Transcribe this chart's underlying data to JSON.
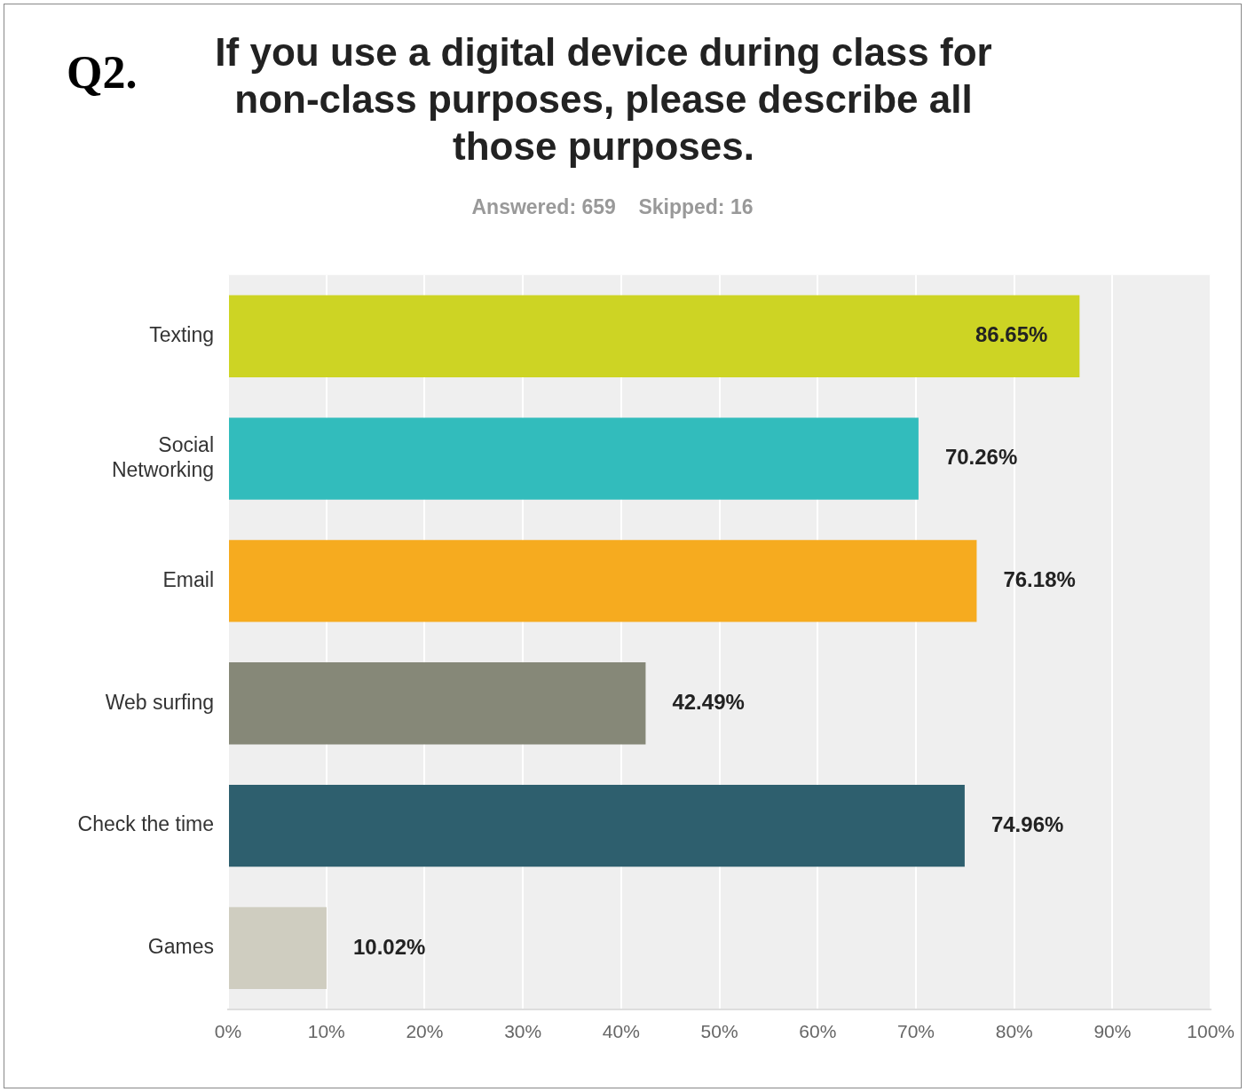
{
  "chart_data": {
    "type": "bar",
    "orientation": "horizontal",
    "title": "If you use a digital device during class for non-class purposes, please describe all those purposes.",
    "subtitle": "Answered: 659    Skipped: 16",
    "annotations": [
      "Q2."
    ],
    "categories": [
      "Texting",
      "Social Networking",
      "Email",
      "Web surfing",
      "Check the time",
      "Games"
    ],
    "values": [
      86.65,
      70.26,
      76.18,
      42.49,
      74.96,
      10.02
    ],
    "colors": [
      "#cdd424",
      "#32bcbc",
      "#f6ab1f",
      "#868878",
      "#2e5f6e",
      "#cfcdc0"
    ],
    "value_labels": [
      "86.65%",
      "70.26%",
      "76.18%",
      "42.49%",
      "74.96%",
      "10.02%"
    ],
    "xlim": [
      0,
      100
    ],
    "xticks": [
      {
        "value": 0,
        "label": "0%"
      },
      {
        "value": 10,
        "label": "10%"
      },
      {
        "value": 20,
        "label": "20%"
      },
      {
        "value": 30,
        "label": "30%"
      },
      {
        "value": 40,
        "label": "40%"
      },
      {
        "value": 50,
        "label": "50%"
      },
      {
        "value": 60,
        "label": "60%"
      },
      {
        "value": 70,
        "label": "70%"
      },
      {
        "value": 80,
        "label": "80%"
      },
      {
        "value": 90,
        "label": "90%"
      },
      {
        "value": 100,
        "label": "100%"
      }
    ],
    "grid": "x",
    "legend": false
  }
}
